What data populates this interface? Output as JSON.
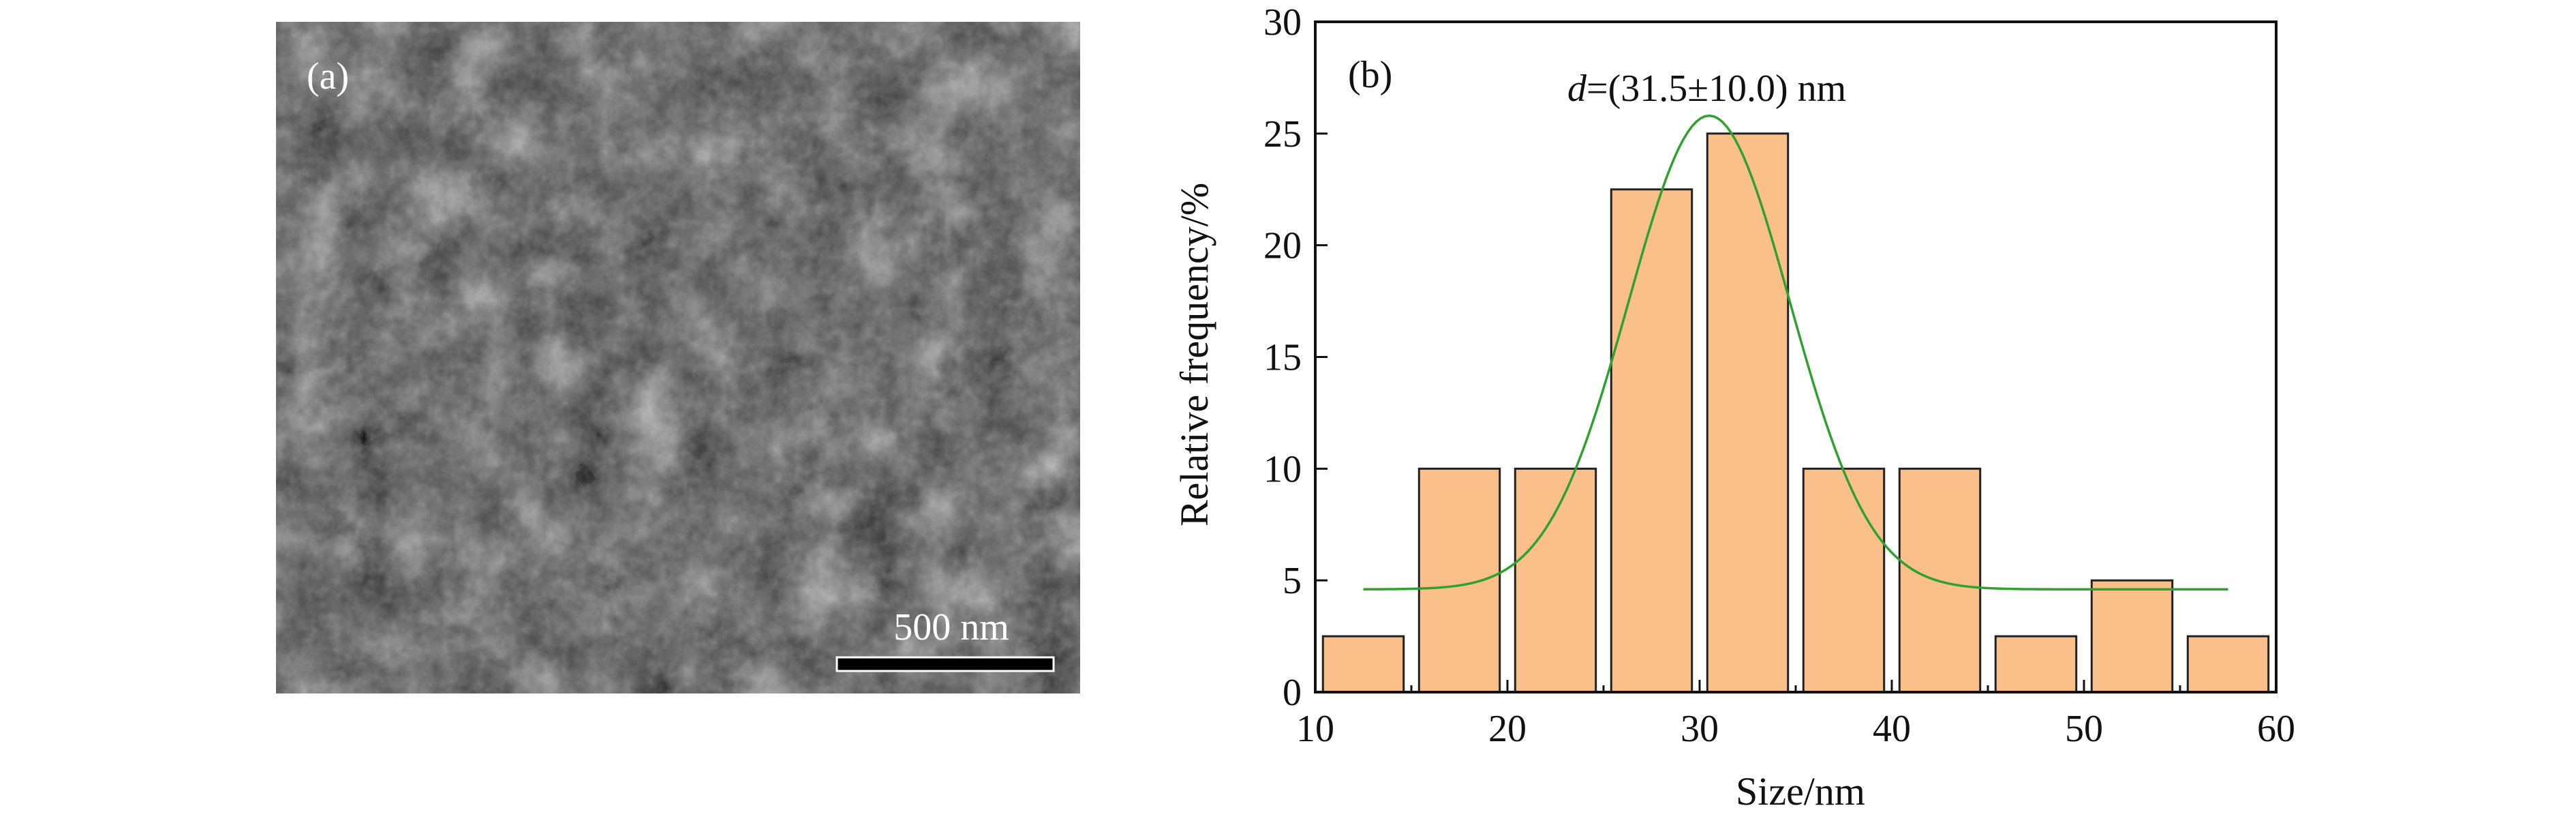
{
  "panel_a": {
    "label": "(a)",
    "scale_bar_label": "500 nm"
  },
  "chart_data": {
    "type": "bar",
    "panel_label": "(b)",
    "annotation": "d=(31.5±10.0) nm",
    "annotation_italic_part": "d",
    "annotation_rest": "=(31.5±10.0) nm",
    "xlabel": "Size/nm",
    "ylabel": "Relative frequency/%",
    "xlim": [
      10,
      60
    ],
    "ylim": [
      0,
      30
    ],
    "x_ticks": [
      10,
      20,
      30,
      40,
      50,
      60
    ],
    "y_ticks": [
      0,
      5,
      10,
      15,
      20,
      25,
      30
    ],
    "bin_width": 5,
    "bins": [
      {
        "start": 10,
        "end": 15,
        "value": 2.5
      },
      {
        "start": 15,
        "end": 20,
        "value": 10
      },
      {
        "start": 20,
        "end": 25,
        "value": 10
      },
      {
        "start": 25,
        "end": 30,
        "value": 22.5
      },
      {
        "start": 30,
        "end": 35,
        "value": 25
      },
      {
        "start": 35,
        "end": 40,
        "value": 10
      },
      {
        "start": 40,
        "end": 45,
        "value": 10
      },
      {
        "start": 45,
        "end": 50,
        "value": 2.5
      },
      {
        "start": 50,
        "end": 55,
        "value": 5
      },
      {
        "start": 55,
        "end": 60,
        "value": 2.5
      }
    ],
    "fit": {
      "type": "gaussian",
      "baseline": 4.6,
      "amplitude": 21.2,
      "center": 30.5,
      "sigma": 4.2,
      "x_range": [
        12.5,
        57.5
      ]
    },
    "colors": {
      "bar_fill": "#fbbf8a",
      "bar_edge": "#222222",
      "fit_line": "#2fa12f",
      "axis": "#111111"
    }
  }
}
